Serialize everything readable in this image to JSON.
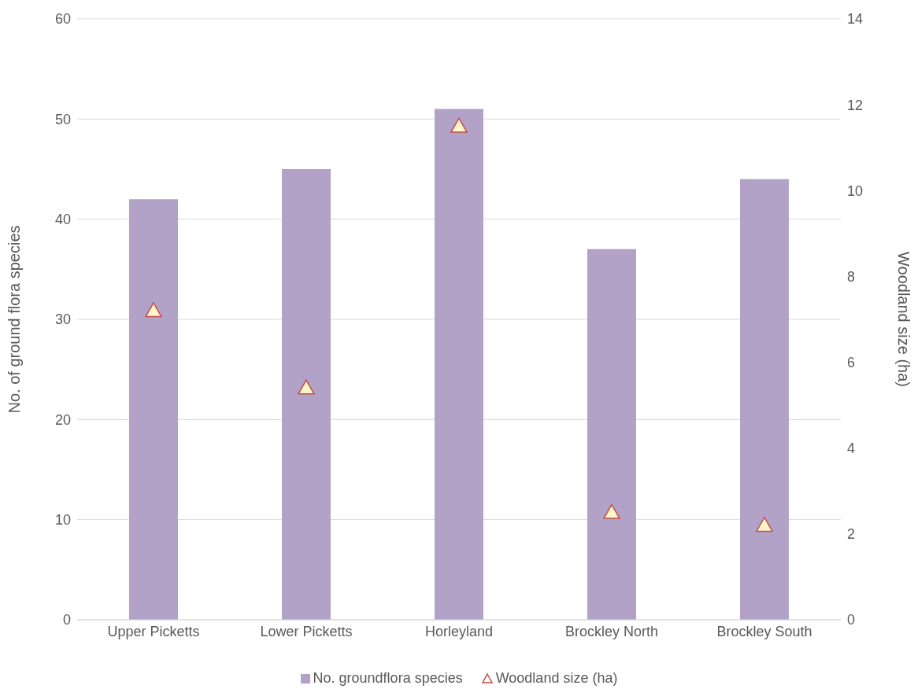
{
  "chart_data": {
    "type": "bar",
    "ylabel": "No. of ground flora species",
    "y2label": "Woodland size (ha)",
    "categories": [
      "Upper Picketts",
      "Lower Picketts",
      "Horleyland",
      "Brockley North",
      "Brockley South"
    ],
    "series": [
      {
        "name": "No. groundflora species",
        "color": "#b2a2c7",
        "values": [
          42,
          45,
          51,
          37,
          44
        ]
      },
      {
        "name": "Woodland size (ha)",
        "type": "scatter",
        "axis": "y2",
        "marker": "triangle",
        "color": "#c0504d",
        "values": [
          7.2,
          5.4,
          11.5,
          2.5,
          2.2
        ]
      }
    ],
    "ylim": [
      0,
      60
    ],
    "yticks": [
      0,
      10,
      20,
      30,
      40,
      50,
      60
    ],
    "y2lim": [
      0,
      14
    ],
    "y2ticks": [
      0,
      2,
      4,
      6,
      8,
      10,
      12,
      14
    ],
    "grid": "y",
    "legend": "bottom"
  }
}
